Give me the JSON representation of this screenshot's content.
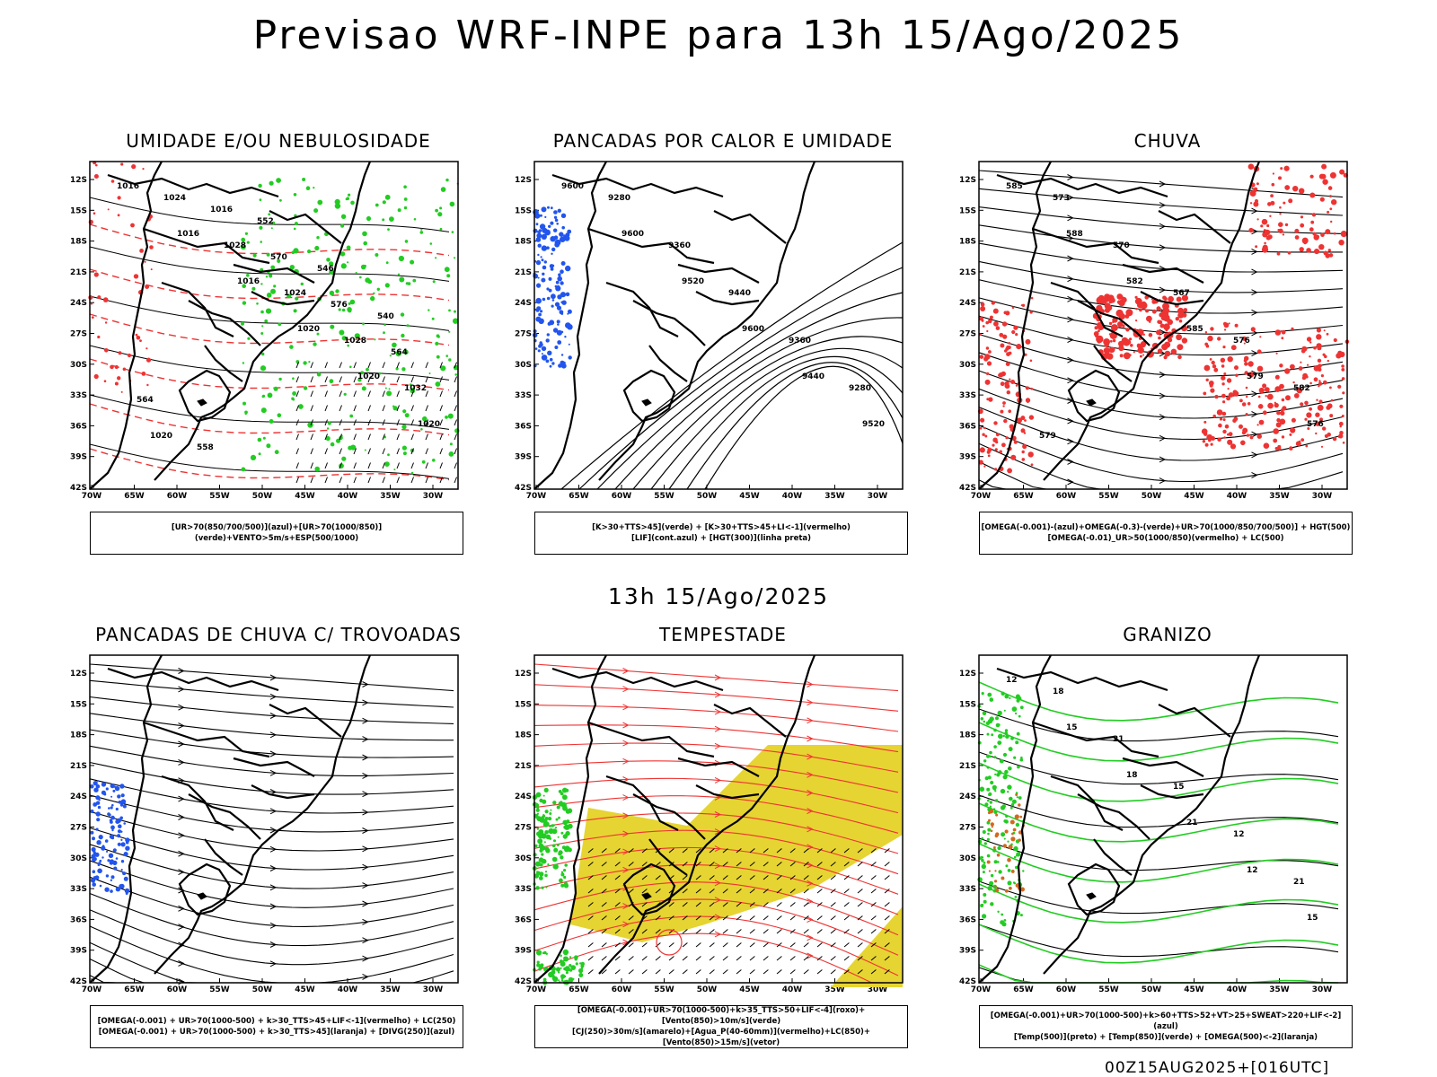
{
  "page": {
    "main_title": "Previsao WRF-INPE  para 13h 15/Ago/2025",
    "mid_title": "13h 15/Ago/2025",
    "footer": "00Z15AUG2025+[016UTC]"
  },
  "axes": {
    "lat_ticks": [
      "12S",
      "15S",
      "18S",
      "21S",
      "24S",
      "27S",
      "30S",
      "33S",
      "36S",
      "39S",
      "42S"
    ],
    "lon_ticks": [
      "70W",
      "65W",
      "60W",
      "55W",
      "50W",
      "45W",
      "40W",
      "35W",
      "30W"
    ]
  },
  "colors": {
    "blue": "#2255ee",
    "green": "#22cc22",
    "red": "#ee3333",
    "yellow": "#e6d432",
    "orange": "#d2691e",
    "black": "#000000"
  },
  "panels": [
    {
      "id": "umidade",
      "title": "UMIDADE E/OU NEBULOSIDADE",
      "legend": [
        "[UR>70(850/700/500)](azul)+[UR>70(1000/850)](verde)+VENTO>5m/s+ESP(500/1000)"
      ],
      "labels": [
        "1016",
        "1016",
        "1016",
        "1020",
        "1020",
        "1020",
        "1024",
        "1028",
        "1024",
        "1028",
        "1032",
        "1020",
        "1016",
        "570",
        "576",
        "564",
        "564",
        "558",
        "552",
        "546",
        "540"
      ]
    },
    {
      "id": "pancadas-calor",
      "title": "PANCADAS POR CALOR E UMIDADE",
      "legend": [
        "[K>30+TTS>45](verde) + [K>30+TTS>45+LI<-1](vermelho)",
        "[LIF](cont.azul) + [HGT(300)](linha preta)"
      ],
      "labels": [
        "9600",
        "9600",
        "9520",
        "9600",
        "9440",
        "9520",
        "9280",
        "9360",
        "9440",
        "9360",
        "9280"
      ]
    },
    {
      "id": "chuva",
      "title": "CHUVA",
      "legend": [
        "[OMEGA(-0.001)-(azul)+OMEGA(-0.3)-(verde)+UR>70(1000/850/700/500)] + HGT(500)",
        "[OMEGA(-0.01)_UR>50(1000/850)(vermelho) + LC(500)"
      ],
      "labels": [
        "585",
        "588",
        "582",
        "585",
        "579",
        "576",
        "573",
        "570",
        "567",
        "576",
        "582",
        "579"
      ]
    },
    {
      "id": "pancadas-trovoadas",
      "title": "PANCADAS DE CHUVA C/ TROVOADAS",
      "legend": [
        "[OMEGA(-0.001) + UR>70(1000-500) + k>30_TTS>45+LIF<-1](vermelho) + LC(250)",
        "[OMEGA(-0.001) + UR>70(1000-500) + k>30_TTS>45](laranja) + [DIVG(250)](azul)"
      ],
      "labels": []
    },
    {
      "id": "tempestade",
      "title": "TEMPESTADE",
      "legend": [
        "[OMEGA(-0.001)+UR>70(1000-500)+k>35_TTS>50+LIF<-4](roxo)+[Vento(850)>10m/s](verde)",
        "[CJ(250)>30m/s](amarelo)+[Agua_P(40-60mm)](vermelho)+LC(850)+[Vento(850)>15m/s](vetor)"
      ],
      "labels": []
    },
    {
      "id": "granizo",
      "title": "GRANIZO",
      "legend": [
        "[OMEGA(-0.001)+UR>70(1000-500)+k>60+TTS>52+VT>25+SWEAT>220+LIF<-2](azul)",
        "[Temp(500)](preto) + [Temp(850)](verde) + [OMEGA(500)<-2](laranja)"
      ],
      "labels": [
        "12",
        "15",
        "18",
        "21",
        "12",
        "15",
        "18",
        "21",
        "15",
        "12",
        "21"
      ]
    }
  ]
}
